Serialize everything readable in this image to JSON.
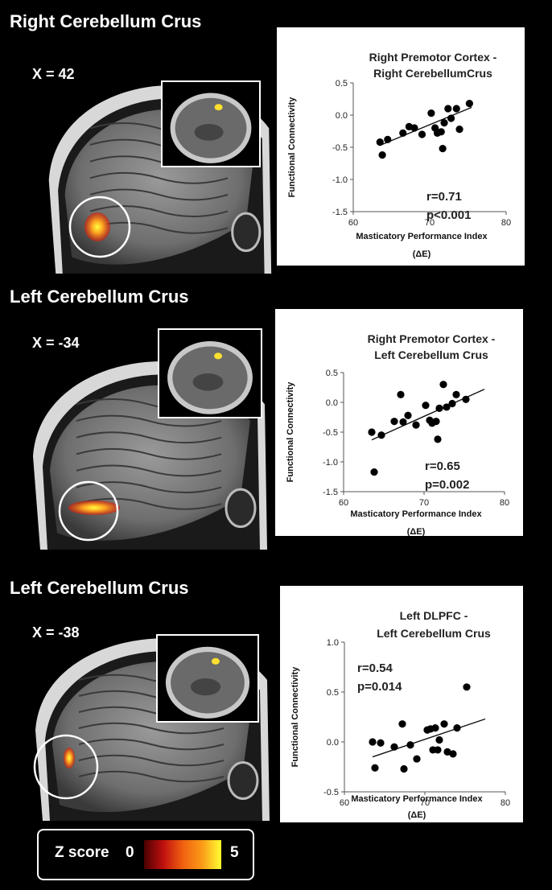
{
  "panels": [
    {
      "section_title": "Right Cerebellum Crus",
      "x_label": "X = 42",
      "plot_title_line1": "Right Premotor Cortex -",
      "plot_title_line2": "Right CerebellumCrus",
      "stat_r": "r=0.71",
      "stat_p": "p<0.001",
      "ylabel": "Functional Connectivity",
      "xlabel_line1": "Masticatory Performance Index",
      "xlabel_line2": "(ΔE)",
      "x_ticks": [
        "60",
        "70",
        "80"
      ],
      "y_ticks": [
        "0.5",
        "0.0",
        "-0.5",
        "-1.0",
        "-1.5"
      ]
    },
    {
      "section_title": "Left Cerebellum Crus",
      "x_label": "X = -34",
      "plot_title_line1": "Right Premotor Cortex -",
      "plot_title_line2": "Left Cerebellum Crus",
      "stat_r": "r=0.65",
      "stat_p": "p=0.002",
      "ylabel": "Functional Connectivity",
      "xlabel_line1": "Masticatory Performance Index",
      "xlabel_line2": "(ΔE)",
      "x_ticks": [
        "60",
        "70",
        "80"
      ],
      "y_ticks": [
        "0.5",
        "0.0",
        "-0.5",
        "-1.0",
        "-1.5"
      ]
    },
    {
      "section_title": "Left Cerebellum Crus",
      "x_label": "X = -38",
      "plot_title_line1": "Left DLPFC -",
      "plot_title_line2": "Left Cerebellum Crus",
      "stat_r": "r=0.54",
      "stat_p": "p=0.014",
      "ylabel": "Functional Connectivity",
      "xlabel_line1": "Masticatory Performance Index",
      "xlabel_line2": "(ΔE)",
      "x_ticks": [
        "60",
        "70",
        "80"
      ],
      "y_ticks": [
        "1.0",
        "0.5",
        "0.0",
        "-0.5"
      ]
    }
  ],
  "legend": {
    "label": "Z score",
    "min": "0",
    "max": "5"
  },
  "chart_data": [
    {
      "type": "scatter",
      "title": "Right Premotor Cortex - Right CerebellumCrus",
      "xlabel": "Masticatory Performance Index (ΔE)",
      "ylabel": "Functional Connectivity",
      "xlim": [
        60,
        80
      ],
      "ylim": [
        -1.5,
        0.5
      ],
      "annotations": [
        "r=0.71",
        "p<0.001"
      ],
      "fit_line": [
        [
          63.5,
          -0.47
        ],
        [
          75.5,
          0.12
        ]
      ],
      "points": [
        [
          63.5,
          -0.42
        ],
        [
          63.8,
          -0.62
        ],
        [
          64.5,
          -0.38
        ],
        [
          66.5,
          -0.28
        ],
        [
          67.3,
          -0.18
        ],
        [
          68,
          -0.2
        ],
        [
          69,
          -0.3
        ],
        [
          70.2,
          0.03
        ],
        [
          70.7,
          -0.2
        ],
        [
          71,
          -0.28
        ],
        [
          71.5,
          -0.26
        ],
        [
          71.7,
          -0.52
        ],
        [
          71.9,
          -0.12
        ],
        [
          72.4,
          0.1
        ],
        [
          72.8,
          -0.05
        ],
        [
          73.5,
          0.1
        ],
        [
          73.9,
          -0.22
        ],
        [
          75.2,
          0.18
        ]
      ]
    },
    {
      "type": "scatter",
      "title": "Right Premotor Cortex - Left Cerebellum Crus",
      "xlabel": "Masticatory Performance Index (ΔE)",
      "ylabel": "Functional Connectivity",
      "xlim": [
        60,
        80
      ],
      "ylim": [
        -1.5,
        0.5
      ],
      "annotations": [
        "r=0.65",
        "p=0.002"
      ],
      "fit_line": [
        [
          63.5,
          -0.63
        ],
        [
          77.5,
          0.22
        ]
      ],
      "points": [
        [
          63.5,
          -0.5
        ],
        [
          63.8,
          -1.17
        ],
        [
          64.7,
          -0.55
        ],
        [
          66.3,
          -0.32
        ],
        [
          67.1,
          0.13
        ],
        [
          67.4,
          -0.33
        ],
        [
          68,
          -0.22
        ],
        [
          69,
          -0.38
        ],
        [
          70.2,
          -0.05
        ],
        [
          70.7,
          -0.3
        ],
        [
          71,
          -0.35
        ],
        [
          71.5,
          -0.32
        ],
        [
          71.7,
          -0.62
        ],
        [
          71.9,
          -0.1
        ],
        [
          72.4,
          0.3
        ],
        [
          72.8,
          -0.08
        ],
        [
          73.5,
          -0.02
        ],
        [
          74,
          0.13
        ],
        [
          75.2,
          0.05
        ]
      ]
    },
    {
      "type": "scatter",
      "title": "Left DLPFC - Left Cerebellum Crus",
      "xlabel": "Masticatory Performance Index (ΔE)",
      "ylabel": "Functional Connectivity",
      "xlim": [
        60,
        80
      ],
      "ylim": [
        -0.5,
        1.0
      ],
      "annotations": [
        "r=0.54",
        "p=0.014"
      ],
      "fit_line": [
        [
          63.5,
          -0.15
        ],
        [
          77.5,
          0.23
        ]
      ],
      "points": [
        [
          63.5,
          0.0
        ],
        [
          63.8,
          -0.26
        ],
        [
          64.5,
          -0.01
        ],
        [
          66.2,
          -0.05
        ],
        [
          67.2,
          0.18
        ],
        [
          67.4,
          -0.27
        ],
        [
          68.2,
          -0.03
        ],
        [
          69,
          -0.17
        ],
        [
          70.3,
          0.12
        ],
        [
          70.7,
          0.13
        ],
        [
          71,
          -0.08
        ],
        [
          71.3,
          0.14
        ],
        [
          71.6,
          -0.08
        ],
        [
          71.8,
          0.02
        ],
        [
          72.4,
          0.18
        ],
        [
          72.8,
          -0.1
        ],
        [
          73.5,
          -0.12
        ],
        [
          74,
          0.14
        ],
        [
          75.2,
          0.55
        ]
      ]
    }
  ]
}
